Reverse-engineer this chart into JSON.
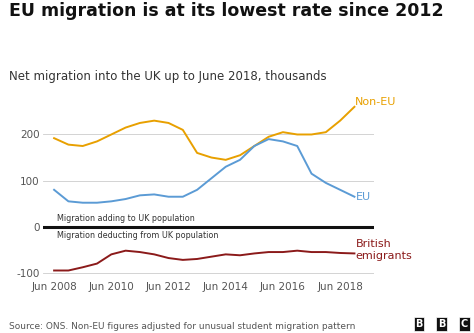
{
  "title": "EU migration is at its lowest rate since 2012",
  "subtitle": "Net migration into the UK up to June 2018, thousands",
  "source": "Source: ONS. Non-EU figures adjusted for unusual student migration pattern",
  "bbc_logo": "BBC",
  "x_years": [
    2008,
    2008.5,
    2009,
    2009.5,
    2010,
    2010.5,
    2011,
    2011.5,
    2012,
    2012.5,
    2013,
    2013.5,
    2014,
    2014.5,
    2015,
    2015.5,
    2016,
    2016.5,
    2017,
    2017.5,
    2018,
    2018.5
  ],
  "non_eu": [
    192,
    178,
    175,
    185,
    200,
    215,
    225,
    230,
    225,
    210,
    160,
    150,
    145,
    155,
    175,
    195,
    205,
    200,
    200,
    205,
    230,
    260
  ],
  "eu": [
    80,
    55,
    52,
    52,
    55,
    60,
    68,
    70,
    65,
    65,
    80,
    105,
    130,
    145,
    175,
    190,
    185,
    175,
    115,
    95,
    80,
    65
  ],
  "british": [
    -95,
    -95,
    -88,
    -80,
    -60,
    -52,
    -55,
    -60,
    -68,
    -72,
    -70,
    -65,
    -60,
    -62,
    -58,
    -55,
    -55,
    -52,
    -55,
    -55,
    -57,
    -58
  ],
  "non_eu_color": "#e8a000",
  "eu_color": "#5b9bd5",
  "british_color": "#8b1a1a",
  "zero_line_color": "#111111",
  "xtick_years": [
    2008,
    2010,
    2012,
    2014,
    2016,
    2018
  ],
  "xtick_labels": [
    "Jun 2008",
    "Jun 2010",
    "Jun 2012",
    "Jun 2014",
    "Jun 2016",
    "Jun 2018"
  ],
  "annotation_above_zero": "Migration adding to UK population",
  "annotation_below_zero": "Migration deducting from UK population",
  "background_color": "#ffffff",
  "title_fontsize": 12.5,
  "subtitle_fontsize": 8.5,
  "tick_fontsize": 7.5,
  "label_fontsize": 8,
  "source_fontsize": 6.5
}
